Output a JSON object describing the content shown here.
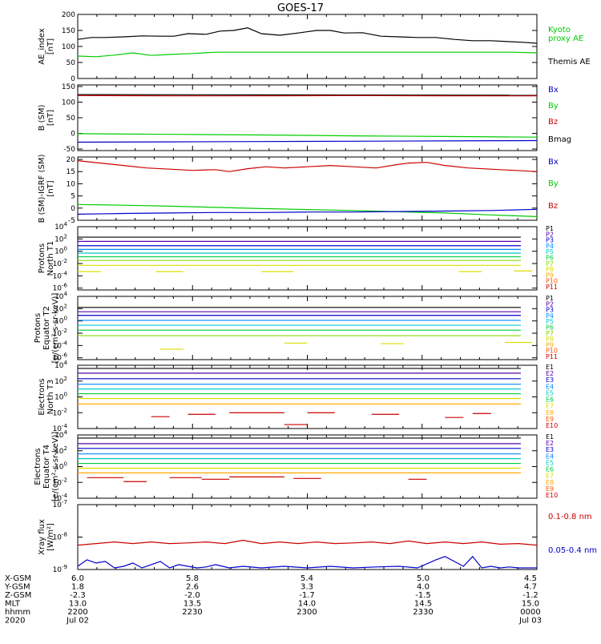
{
  "title": "GOES-17",
  "colors": {
    "black": "#000000",
    "red": "#cc0000",
    "green": "#00cc00",
    "blue": "#0000cc",
    "P": [
      "#000000",
      "#5500aa",
      "#0000cc",
      "#0088ff",
      "#00cccc",
      "#00cc44",
      "#88dd00",
      "#dddd00",
      "#ffaa00",
      "#ff5500",
      "#cc0000"
    ],
    "E": [
      "#000000",
      "#5500aa",
      "#0000cc",
      "#0088ff",
      "#00cccc",
      "#00cc44",
      "#dddd00",
      "#ffaa00",
      "#ff5500",
      "#cc0000"
    ]
  },
  "chart_data": [
    {
      "id": "ae",
      "type": "line",
      "ylabel": "AE_index\n[nT]",
      "ylim": [
        0,
        200
      ],
      "yticks": [
        "0",
        "50",
        "100",
        "150",
        "200"
      ],
      "ytick_values": [
        0,
        50,
        100,
        150,
        200
      ],
      "legend": [
        {
          "text": "Kyoto\nproxy AE",
          "color": "#00cc00"
        },
        {
          "text": "Themis AE",
          "color": "#000000"
        }
      ],
      "series": [
        {
          "color": "#000000",
          "x": [
            0,
            0.03,
            0.06,
            0.1,
            0.14,
            0.18,
            0.21,
            0.24,
            0.28,
            0.31,
            0.34,
            0.37,
            0.4,
            0.44,
            0.48,
            0.52,
            0.55,
            0.58,
            0.62,
            0.66,
            0.7,
            0.74,
            0.78,
            0.82,
            0.86,
            0.9,
            0.94,
            0.97,
            1
          ],
          "y": [
            122,
            128,
            128,
            130,
            133,
            132,
            132,
            140,
            138,
            148,
            150,
            158,
            140,
            135,
            142,
            150,
            150,
            142,
            143,
            132,
            130,
            128,
            128,
            122,
            118,
            118,
            115,
            113,
            110
          ]
        },
        {
          "color": "#00cc00",
          "x": [
            0,
            0.04,
            0.08,
            0.12,
            0.16,
            0.2,
            0.25,
            0.3,
            0.35,
            0.4,
            0.45,
            0.5,
            0.55,
            0.6,
            0.65,
            0.7,
            0.75,
            0.8,
            0.85,
            0.9,
            0.95,
            1
          ],
          "y": [
            70,
            68,
            73,
            80,
            72,
            75,
            78,
            82,
            82,
            82,
            82,
            82,
            82,
            82,
            82,
            82,
            82,
            82,
            82,
            82,
            82,
            80
          ]
        }
      ]
    },
    {
      "id": "bsm",
      "type": "line",
      "ylabel": "B (SM)\n[nT]",
      "ylim": [
        -55,
        155
      ],
      "yticks": [
        "-50",
        "0",
        "50",
        "100",
        "150"
      ],
      "ytick_values": [
        -50,
        0,
        50,
        100,
        150
      ],
      "legend": [
        {
          "text": "Bx",
          "color": "#0000cc"
        },
        {
          "text": "By",
          "color": "#00cc00"
        },
        {
          "text": "Bz",
          "color": "#cc0000"
        },
        {
          "text": "Bmag",
          "color": "#000000"
        }
      ],
      "series": [
        {
          "color": "#000000",
          "x": [
            0,
            1
          ],
          "y": [
            124,
            122
          ]
        },
        {
          "color": "#cc0000",
          "x": [
            0,
            0.2,
            0.4,
            0.6,
            0.8,
            1
          ],
          "y": [
            121,
            120,
            120,
            121,
            120,
            120
          ]
        },
        {
          "color": "#00cc00",
          "x": [
            0,
            0.2,
            0.4,
            0.6,
            0.8,
            1
          ],
          "y": [
            -1,
            -3,
            -5,
            -8,
            -10,
            -12
          ]
        },
        {
          "color": "#0000cc",
          "x": [
            0,
            0.2,
            0.4,
            0.6,
            0.8,
            1
          ],
          "y": [
            -28,
            -27,
            -26,
            -25,
            -24,
            -23
          ]
        }
      ]
    },
    {
      "id": "bdiff",
      "type": "line",
      "ylabel": "B (SM)-IGRF (SM)\n[nT]",
      "ylim": [
        -5,
        21
      ],
      "yticks": [
        "-5",
        "0",
        "5",
        "10",
        "15",
        "20"
      ],
      "ytick_values": [
        -5,
        0,
        5,
        10,
        15,
        20
      ],
      "legend": [
        {
          "text": "Bx",
          "color": "#0000cc"
        },
        {
          "text": "By",
          "color": "#00cc00"
        },
        {
          "text": "Bz",
          "color": "#cc0000"
        }
      ],
      "series": [
        {
          "color": "#cc0000",
          "x": [
            0,
            0.05,
            0.1,
            0.15,
            0.2,
            0.25,
            0.3,
            0.33,
            0.37,
            0.41,
            0.45,
            0.5,
            0.55,
            0.6,
            0.65,
            0.7,
            0.72,
            0.76,
            0.8,
            0.85,
            0.9,
            0.95,
            1
          ],
          "y": [
            19.5,
            18.5,
            17.5,
            16.5,
            16,
            15.5,
            15.8,
            15,
            16.2,
            17,
            16.5,
            17,
            17.5,
            17,
            16.5,
            18,
            18.5,
            18.8,
            17.5,
            16.5,
            16,
            15.5,
            15
          ]
        },
        {
          "color": "#00cc00",
          "x": [
            0,
            0.1,
            0.2,
            0.3,
            0.4,
            0.5,
            0.6,
            0.7,
            0.8,
            0.9,
            1
          ],
          "y": [
            1.5,
            1.2,
            0.8,
            0.3,
            -0.2,
            -0.6,
            -1,
            -1.5,
            -2,
            -2.8,
            -3.5
          ]
        },
        {
          "color": "#0000cc",
          "x": [
            0,
            0.1,
            0.2,
            0.3,
            0.4,
            0.5,
            0.6,
            0.7,
            0.8,
            0.9,
            1
          ],
          "y": [
            -2.5,
            -2.2,
            -2,
            -1.8,
            -1.8,
            -1.6,
            -1.6,
            -1.4,
            -1.2,
            -1,
            -0.5
          ]
        }
      ]
    },
    {
      "id": "pn",
      "type": "line",
      "log": true,
      "ylabel": "Protons\nNorth T1",
      "ylim": [
        -6.3,
        4
      ],
      "yticks": [
        "10^-6",
        "10^-4",
        "10^-2",
        "10^0",
        "10^2",
        "10^4"
      ],
      "ytick_values": [
        -6,
        -4,
        -2,
        0,
        2,
        4
      ],
      "legend": [
        {
          "text": "P1"
        },
        {
          "text": "P2"
        },
        {
          "text": "P3"
        },
        {
          "text": "P4"
        },
        {
          "text": "P5"
        },
        {
          "text": "P6"
        },
        {
          "text": "P7"
        },
        {
          "text": "P8"
        },
        {
          "text": "P9"
        },
        {
          "text": "P10"
        },
        {
          "text": "P11"
        }
      ],
      "levels": [
        2.3,
        1.6,
        0.9,
        0.3,
        -0.3,
        -0.9,
        -1.5,
        -2.3
      ],
      "segments": [
        [
          0.0,
          0.05,
          -3.3
        ],
        [
          0.17,
          0.23,
          -3.3
        ],
        [
          0.4,
          0.47,
          -3.3
        ],
        [
          0.83,
          0.88,
          -3.3
        ],
        [
          0.95,
          0.99,
          -3.2
        ]
      ]
    },
    {
      "id": "pe",
      "type": "line",
      "log": true,
      "ylabel": "Protons\nEquator T2\n[p/(cm²-s-sr-keV)]",
      "ylim": [
        -6.3,
        4
      ],
      "yticks": [
        "10^-6",
        "10^-4",
        "10^-2",
        "10^0",
        "10^2",
        "10^4"
      ],
      "ytick_values": [
        -6,
        -4,
        -2,
        0,
        2,
        4
      ],
      "legend": [
        {
          "text": "P1"
        },
        {
          "text": "P2"
        },
        {
          "text": "P3"
        },
        {
          "text": "P4"
        },
        {
          "text": "P5"
        },
        {
          "text": "P6"
        },
        {
          "text": "P7"
        },
        {
          "text": "P8"
        },
        {
          "text": "P9"
        },
        {
          "text": "P10"
        },
        {
          "text": "P11"
        }
      ],
      "levels": [
        2.2,
        1.5,
        0.9,
        0.1,
        -0.7,
        -1.5,
        -2.4
      ],
      "segments": [
        [
          0.18,
          0.23,
          -4.6
        ],
        [
          0.45,
          0.5,
          -3.6
        ],
        [
          0.66,
          0.71,
          -3.7
        ],
        [
          0.93,
          0.99,
          -3.5
        ]
      ]
    },
    {
      "id": "en",
      "type": "line",
      "log": true,
      "ylabel": "Electrons\nNorth T3",
      "ylim": [
        -4,
        4
      ],
      "yticks": [
        "10^-4",
        "10^-2",
        "10^0",
        "10^2",
        "10^4"
      ],
      "ytick_values": [
        -4,
        -2,
        0,
        2,
        4
      ],
      "legend": [
        {
          "text": "E1"
        },
        {
          "text": "E2"
        },
        {
          "text": "E3"
        },
        {
          "text": "E4"
        },
        {
          "text": "E5"
        },
        {
          "text": "E6"
        },
        {
          "text": "E7"
        },
        {
          "text": "E8"
        },
        {
          "text": "E9"
        },
        {
          "text": "E10"
        }
      ],
      "levels": [
        3.6,
        3.0,
        2.3,
        1.6,
        1.0,
        0.4,
        -0.2,
        -0.9
      ],
      "segments": [
        [
          0.16,
          0.2,
          -2.5
        ],
        [
          0.24,
          0.3,
          -2.2
        ],
        [
          0.33,
          0.45,
          -2.0
        ],
        [
          0.45,
          0.5,
          -3.5
        ],
        [
          0.5,
          0.56,
          -2.0
        ],
        [
          0.64,
          0.7,
          -2.2
        ],
        [
          0.8,
          0.84,
          -2.6
        ],
        [
          0.86,
          0.9,
          -2.1
        ]
      ]
    },
    {
      "id": "ee",
      "type": "line",
      "log": true,
      "ylabel": "Electrons\nEquator T4\n[e/(cm²-s-sr-keV)]",
      "ylim": [
        -4,
        4
      ],
      "yticks": [
        "10^-4",
        "10^-2",
        "10^0",
        "10^2",
        "10^4"
      ],
      "ytick_values": [
        -4,
        -2,
        0,
        2,
        4
      ],
      "legend": [
        {
          "text": "E1"
        },
        {
          "text": "E2"
        },
        {
          "text": "E3"
        },
        {
          "text": "E4"
        },
        {
          "text": "E5"
        },
        {
          "text": "E6"
        },
        {
          "text": "E7"
        },
        {
          "text": "E8"
        },
        {
          "text": "E9"
        },
        {
          "text": "E10"
        }
      ],
      "levels": [
        3.6,
        2.9,
        2.3,
        1.6,
        1.0,
        0.4,
        -0.2,
        -0.8
      ],
      "segments": [
        [
          0.02,
          0.1,
          -1.4
        ],
        [
          0.1,
          0.15,
          -1.9
        ],
        [
          0.2,
          0.27,
          -1.4
        ],
        [
          0.27,
          0.33,
          -1.6
        ],
        [
          0.33,
          0.45,
          -1.3
        ],
        [
          0.47,
          0.53,
          -1.5
        ],
        [
          0.72,
          0.76,
          -1.6
        ]
      ]
    },
    {
      "id": "xray",
      "type": "line",
      "log": true,
      "ylabel": "Xray flux\n[W/m²]",
      "ylim": [
        -9,
        -7
      ],
      "yticks": [
        "10^-9",
        "10^-8",
        "10^-7"
      ],
      "ytick_values": [
        -9,
        -8,
        -7
      ],
      "legend": [
        {
          "text": "0.1-0.8 nm",
          "color": "#cc0000"
        },
        {
          "text": "0.05-0.4 nm",
          "color": "#0000cc"
        }
      ],
      "series": [
        {
          "color": "#cc0000",
          "x": [
            0,
            0.04,
            0.08,
            0.12,
            0.16,
            0.2,
            0.24,
            0.28,
            0.32,
            0.36,
            0.4,
            0.44,
            0.48,
            0.52,
            0.56,
            0.6,
            0.64,
            0.68,
            0.72,
            0.76,
            0.8,
            0.84,
            0.88,
            0.92,
            0.96,
            1
          ],
          "y": [
            -8.25,
            -8.2,
            -8.15,
            -8.2,
            -8.15,
            -8.2,
            -8.18,
            -8.15,
            -8.2,
            -8.1,
            -8.2,
            -8.15,
            -8.2,
            -8.15,
            -8.2,
            -8.18,
            -8.15,
            -8.2,
            -8.12,
            -8.2,
            -8.15,
            -8.2,
            -8.15,
            -8.22,
            -8.2,
            -8.25
          ]
        },
        {
          "color": "#0000cc",
          "x": [
            0,
            0.02,
            0.04,
            0.06,
            0.08,
            0.1,
            0.12,
            0.14,
            0.16,
            0.18,
            0.2,
            0.22,
            0.24,
            0.26,
            0.28,
            0.3,
            0.33,
            0.36,
            0.4,
            0.45,
            0.5,
            0.55,
            0.6,
            0.65,
            0.7,
            0.74,
            0.78,
            0.8,
            0.82,
            0.84,
            0.86,
            0.88,
            0.9,
            0.92,
            0.94,
            0.96,
            1
          ],
          "y": [
            -8.9,
            -8.7,
            -8.8,
            -8.75,
            -8.95,
            -8.9,
            -8.8,
            -8.95,
            -8.85,
            -8.75,
            -8.95,
            -8.85,
            -8.9,
            -8.95,
            -8.92,
            -8.85,
            -8.95,
            -8.9,
            -8.95,
            -8.9,
            -8.95,
            -8.9,
            -8.95,
            -8.92,
            -8.9,
            -8.95,
            -8.7,
            -8.6,
            -8.75,
            -8.9,
            -8.6,
            -8.95,
            -8.9,
            -8.95,
            -8.92,
            -8.95,
            -8.95
          ]
        }
      ]
    }
  ],
  "xaxis": {
    "rows": [
      {
        "label": "X-GSM",
        "values": [
          "6.0",
          "5.8",
          "5.4",
          "5.0",
          "4.5"
        ]
      },
      {
        "label": "Y-GSM",
        "values": [
          "1.8",
          "2.6",
          "3.3",
          "4.0",
          "4.7"
        ]
      },
      {
        "label": "Z-GSM",
        "values": [
          "-2.3",
          "-2.0",
          "-1.7",
          "-1.5",
          "-1.2"
        ]
      },
      {
        "label": "MLT",
        "values": [
          "13.0",
          "13.5",
          "14.0",
          "14.5",
          "15.0"
        ]
      },
      {
        "label": "hhmm",
        "values": [
          "2200",
          "2230",
          "2300",
          "2330",
          "0000"
        ]
      },
      {
        "label": "2020",
        "values": [
          "Jul 02",
          "",
          "",
          "",
          "Jul 03"
        ]
      }
    ]
  }
}
